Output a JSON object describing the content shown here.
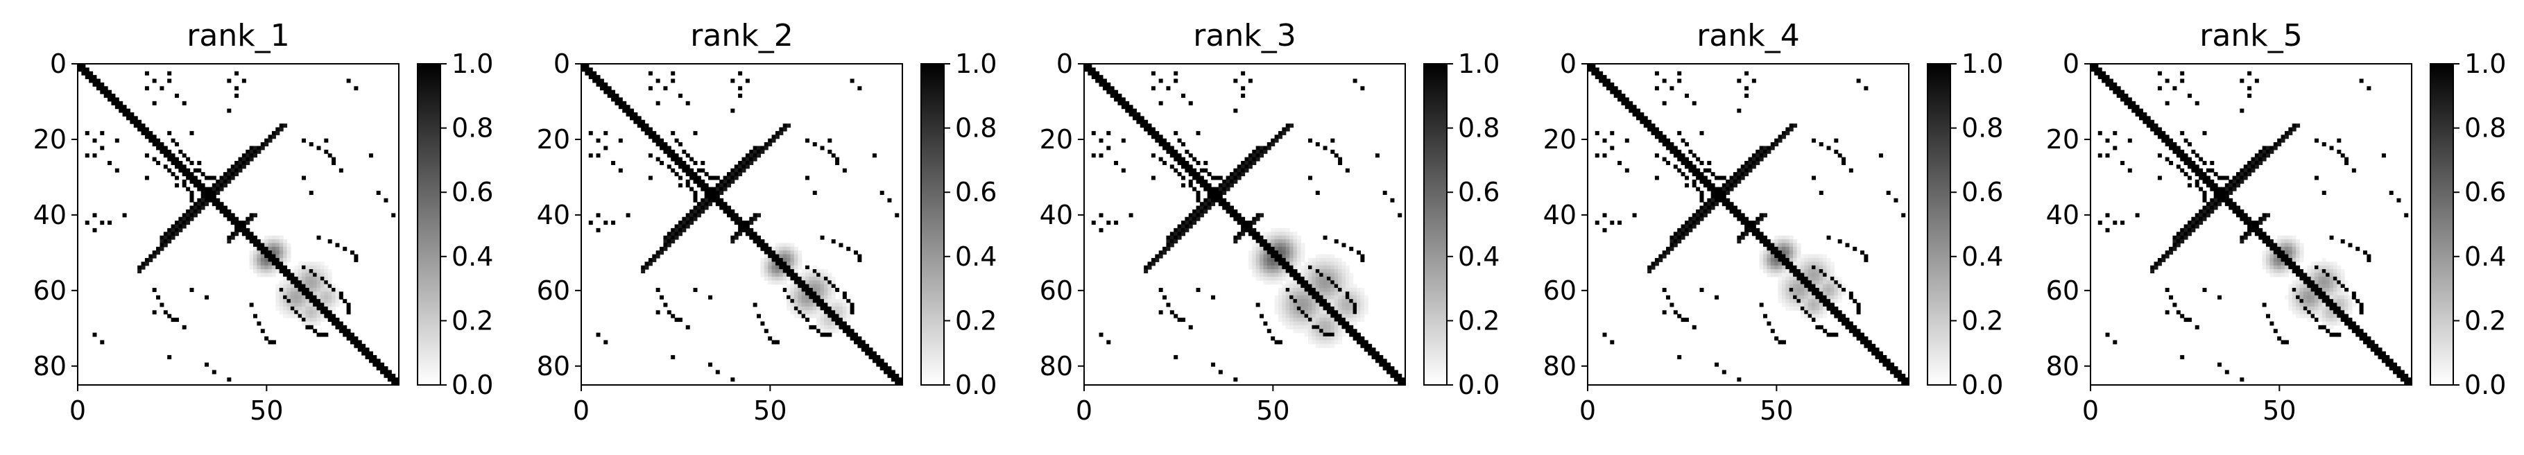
{
  "chart_data": [
    {
      "type": "heatmap",
      "title": "rank_1",
      "matrix_size": 86,
      "xticks": [
        0,
        50
      ],
      "yticks": [
        0,
        20,
        40,
        60,
        80
      ],
      "xlim": [
        0,
        85
      ],
      "ylim": [
        85,
        0
      ],
      "colorbar": {
        "min": 0.0,
        "max": 1.0,
        "ticks": [
          "0.0",
          "0.2",
          "0.4",
          "0.6",
          "0.8",
          "1.0"
        ],
        "colormap": "Greys"
      },
      "main_diagonal": true,
      "anti_diagonals": [
        [
          22,
          46
        ],
        [
          16,
          54
        ],
        [
          40,
          46
        ]
      ],
      "contact_arcs": [
        [
          24,
          36,
          18,
          30
        ],
        [
          54,
          66,
          60,
          72
        ],
        [
          20,
          26,
          60,
          68
        ],
        [
          46,
          52,
          64,
          74
        ]
      ],
      "scatter_cells": [
        [
          4,
          24
        ],
        [
          4,
          40
        ],
        [
          6,
          18
        ],
        [
          8,
          42
        ],
        [
          10,
          20
        ],
        [
          12,
          40
        ],
        [
          18,
          2
        ],
        [
          20,
          4
        ],
        [
          22,
          6
        ],
        [
          24,
          2
        ],
        [
          26,
          8
        ],
        [
          28,
          10
        ],
        [
          30,
          18
        ],
        [
          32,
          26
        ],
        [
          34,
          30
        ],
        [
          42,
          2
        ],
        [
          42,
          6
        ],
        [
          44,
          4
        ],
        [
          60,
          30
        ],
        [
          62,
          34
        ],
        [
          66,
          20
        ],
        [
          70,
          28
        ],
        [
          72,
          4
        ],
        [
          74,
          6
        ],
        [
          78,
          24
        ],
        [
          80,
          34
        ],
        [
          82,
          36
        ],
        [
          84,
          40
        ]
      ],
      "diffuse_blobs": [
        [
          50,
          52,
          3,
          0.55
        ],
        [
          58,
          62,
          4,
          0.35
        ],
        [
          62,
          66,
          3,
          0.25
        ]
      ]
    },
    {
      "type": "heatmap",
      "title": "rank_2",
      "matrix_size": 86,
      "xticks": [
        0,
        50
      ],
      "yticks": [
        0,
        20,
        40,
        60,
        80
      ],
      "xlim": [
        0,
        85
      ],
      "ylim": [
        85,
        0
      ],
      "colorbar": {
        "min": 0.0,
        "max": 1.0,
        "ticks": [
          "0.0",
          "0.2",
          "0.4",
          "0.6",
          "0.8",
          "1.0"
        ],
        "colormap": "Greys"
      },
      "main_diagonal": true,
      "anti_diagonals": [
        [
          22,
          46
        ],
        [
          16,
          54
        ],
        [
          40,
          46
        ]
      ],
      "contact_arcs": [
        [
          24,
          36,
          18,
          30
        ],
        [
          54,
          66,
          60,
          72
        ],
        [
          20,
          26,
          60,
          68
        ],
        [
          46,
          52,
          64,
          74
        ]
      ],
      "scatter_cells": [
        [
          4,
          24
        ],
        [
          4,
          40
        ],
        [
          6,
          18
        ],
        [
          8,
          42
        ],
        [
          10,
          20
        ],
        [
          12,
          40
        ],
        [
          18,
          2
        ],
        [
          20,
          4
        ],
        [
          22,
          6
        ],
        [
          24,
          2
        ],
        [
          26,
          8
        ],
        [
          28,
          10
        ],
        [
          30,
          18
        ],
        [
          32,
          26
        ],
        [
          34,
          30
        ],
        [
          42,
          2
        ],
        [
          42,
          6
        ],
        [
          44,
          4
        ],
        [
          60,
          30
        ],
        [
          62,
          34
        ],
        [
          66,
          20
        ],
        [
          70,
          28
        ],
        [
          72,
          4
        ],
        [
          74,
          6
        ],
        [
          78,
          24
        ],
        [
          80,
          34
        ],
        [
          82,
          36
        ],
        [
          84,
          40
        ]
      ],
      "diffuse_blobs": [
        [
          52,
          54,
          3,
          0.5
        ],
        [
          60,
          62,
          4,
          0.4
        ],
        [
          66,
          68,
          3,
          0.2
        ]
      ]
    },
    {
      "type": "heatmap",
      "title": "rank_3",
      "matrix_size": 86,
      "xticks": [
        0,
        50
      ],
      "yticks": [
        0,
        20,
        40,
        60,
        80
      ],
      "xlim": [
        0,
        85
      ],
      "ylim": [
        85,
        0
      ],
      "colorbar": {
        "min": 0.0,
        "max": 1.0,
        "ticks": [
          "0.0",
          "0.2",
          "0.4",
          "0.6",
          "0.8",
          "1.0"
        ],
        "colormap": "Greys"
      },
      "main_diagonal": true,
      "anti_diagonals": [
        [
          22,
          46
        ],
        [
          16,
          54
        ],
        [
          40,
          46
        ]
      ],
      "contact_arcs": [
        [
          24,
          36,
          18,
          30
        ],
        [
          54,
          66,
          60,
          72
        ],
        [
          20,
          26,
          60,
          68
        ],
        [
          46,
          52,
          64,
          74
        ]
      ],
      "scatter_cells": [
        [
          4,
          24
        ],
        [
          4,
          40
        ],
        [
          6,
          18
        ],
        [
          8,
          42
        ],
        [
          10,
          20
        ],
        [
          12,
          40
        ],
        [
          18,
          2
        ],
        [
          20,
          4
        ],
        [
          22,
          6
        ],
        [
          24,
          2
        ],
        [
          26,
          8
        ],
        [
          28,
          10
        ],
        [
          30,
          18
        ],
        [
          32,
          26
        ],
        [
          34,
          30
        ],
        [
          42,
          2
        ],
        [
          42,
          6
        ],
        [
          44,
          4
        ],
        [
          60,
          30
        ],
        [
          62,
          34
        ],
        [
          66,
          20
        ],
        [
          70,
          28
        ],
        [
          72,
          4
        ],
        [
          74,
          6
        ],
        [
          78,
          24
        ],
        [
          80,
          34
        ],
        [
          82,
          36
        ],
        [
          84,
          40
        ]
      ],
      "diffuse_blobs": [
        [
          50,
          52,
          4,
          0.6
        ],
        [
          58,
          64,
          5,
          0.4
        ],
        [
          64,
          70,
          4,
          0.3
        ]
      ]
    },
    {
      "type": "heatmap",
      "title": "rank_4",
      "matrix_size": 86,
      "xticks": [
        0,
        50
      ],
      "yticks": [
        0,
        20,
        40,
        60,
        80
      ],
      "xlim": [
        0,
        85
      ],
      "ylim": [
        85,
        0
      ],
      "colorbar": {
        "min": 0.0,
        "max": 1.0,
        "ticks": [
          "0.0",
          "0.2",
          "0.4",
          "0.6",
          "0.8",
          "1.0"
        ],
        "colormap": "Greys"
      },
      "main_diagonal": true,
      "anti_diagonals": [
        [
          22,
          46
        ],
        [
          16,
          54
        ],
        [
          40,
          46
        ]
      ],
      "contact_arcs": [
        [
          24,
          36,
          18,
          30
        ],
        [
          54,
          66,
          60,
          72
        ],
        [
          20,
          26,
          60,
          68
        ],
        [
          46,
          52,
          64,
          74
        ]
      ],
      "scatter_cells": [
        [
          4,
          24
        ],
        [
          4,
          40
        ],
        [
          6,
          18
        ],
        [
          8,
          42
        ],
        [
          10,
          20
        ],
        [
          12,
          40
        ],
        [
          18,
          2
        ],
        [
          20,
          4
        ],
        [
          22,
          6
        ],
        [
          24,
          2
        ],
        [
          26,
          8
        ],
        [
          28,
          10
        ],
        [
          30,
          18
        ],
        [
          32,
          26
        ],
        [
          34,
          30
        ],
        [
          42,
          2
        ],
        [
          42,
          6
        ],
        [
          44,
          4
        ],
        [
          60,
          30
        ],
        [
          62,
          34
        ],
        [
          66,
          20
        ],
        [
          70,
          28
        ],
        [
          72,
          4
        ],
        [
          74,
          6
        ],
        [
          78,
          24
        ],
        [
          80,
          34
        ],
        [
          82,
          36
        ],
        [
          84,
          40
        ]
      ],
      "diffuse_blobs": [
        [
          50,
          52,
          3,
          0.55
        ],
        [
          56,
          60,
          4,
          0.35
        ],
        [
          60,
          64,
          3,
          0.3
        ]
      ]
    },
    {
      "type": "heatmap",
      "title": "rank_5",
      "matrix_size": 86,
      "xticks": [
        0,
        50
      ],
      "yticks": [
        0,
        20,
        40,
        60,
        80
      ],
      "xlim": [
        0,
        85
      ],
      "ylim": [
        85,
        0
      ],
      "colorbar": {
        "min": 0.0,
        "max": 1.0,
        "ticks": [
          "0.0",
          "0.2",
          "0.4",
          "0.6",
          "0.8",
          "1.0"
        ],
        "colormap": "Greys"
      },
      "main_diagonal": true,
      "anti_diagonals": [
        [
          22,
          46
        ],
        [
          16,
          54
        ],
        [
          40,
          46
        ]
      ],
      "contact_arcs": [
        [
          24,
          36,
          18,
          30
        ],
        [
          54,
          66,
          60,
          72
        ],
        [
          20,
          26,
          60,
          68
        ],
        [
          46,
          52,
          64,
          74
        ]
      ],
      "scatter_cells": [
        [
          4,
          24
        ],
        [
          4,
          40
        ],
        [
          6,
          18
        ],
        [
          8,
          42
        ],
        [
          10,
          20
        ],
        [
          12,
          40
        ],
        [
          18,
          2
        ],
        [
          20,
          4
        ],
        [
          22,
          6
        ],
        [
          24,
          2
        ],
        [
          26,
          8
        ],
        [
          28,
          10
        ],
        [
          30,
          18
        ],
        [
          32,
          26
        ],
        [
          34,
          30
        ],
        [
          42,
          2
        ],
        [
          42,
          6
        ],
        [
          44,
          4
        ],
        [
          60,
          30
        ],
        [
          62,
          34
        ],
        [
          66,
          20
        ],
        [
          70,
          28
        ],
        [
          72,
          4
        ],
        [
          74,
          6
        ],
        [
          78,
          24
        ],
        [
          80,
          34
        ],
        [
          82,
          36
        ],
        [
          84,
          40
        ]
      ],
      "diffuse_blobs": [
        [
          50,
          52,
          3,
          0.5
        ],
        [
          58,
          62,
          4,
          0.4
        ],
        [
          64,
          66,
          3,
          0.25
        ]
      ]
    }
  ]
}
